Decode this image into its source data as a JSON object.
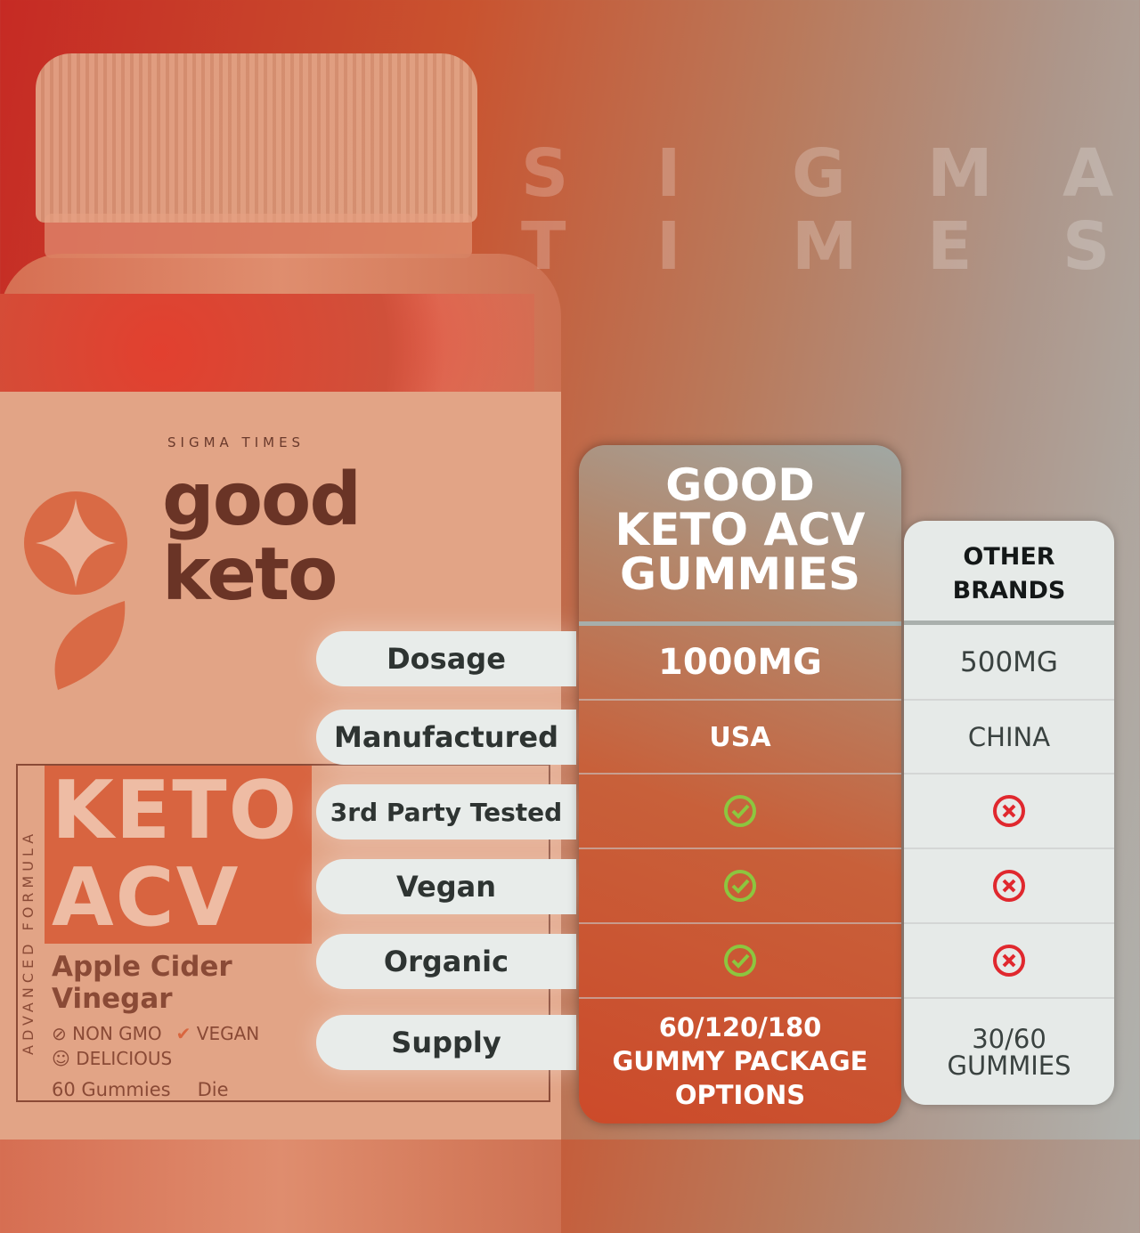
{
  "watermark": {
    "line1": [
      "S",
      "I",
      "G",
      "M",
      "A"
    ],
    "line2": [
      "T",
      "I",
      "M",
      "E",
      "S"
    ]
  },
  "bottle": {
    "brand_small": "SIGMA TIMES",
    "brand_line1": "good",
    "brand_line2": "keto",
    "vertical_text": "ADVANCED FORMULA",
    "product": "KETO ACV",
    "subtitle": "Apple Cider Vinegar",
    "features": [
      "NON GMO",
      "VEGAN",
      "DELICIOUS"
    ],
    "count": "60 Gummies",
    "partial": "Die"
  },
  "comparison": {
    "good_header": [
      "GOOD",
      "KETO ACV",
      "GUMMIES"
    ],
    "other_header": [
      "OTHER",
      "BRANDS"
    ],
    "rows": [
      {
        "label": "Dosage",
        "good": "1000MG",
        "other": "500MG"
      },
      {
        "label": "Manufactured",
        "good": "USA",
        "other": "CHINA"
      },
      {
        "label": "3rd Party Tested",
        "good_icon": "check-circle-icon",
        "other_icon": "x-circle-icon"
      },
      {
        "label": "Vegan",
        "good_icon": "check-circle-icon",
        "other_icon": "x-circle-icon"
      },
      {
        "label": "Organic",
        "good_icon": "check-circle-icon",
        "other_icon": "x-circle-icon"
      },
      {
        "label": "Supply",
        "good": "60/120/180 GUMMY PACKAGE OPTIONS",
        "other": "30/60 GUMMIES"
      }
    ],
    "colors": {
      "check": "#8cc63f",
      "cross": "#e0282e"
    }
  }
}
